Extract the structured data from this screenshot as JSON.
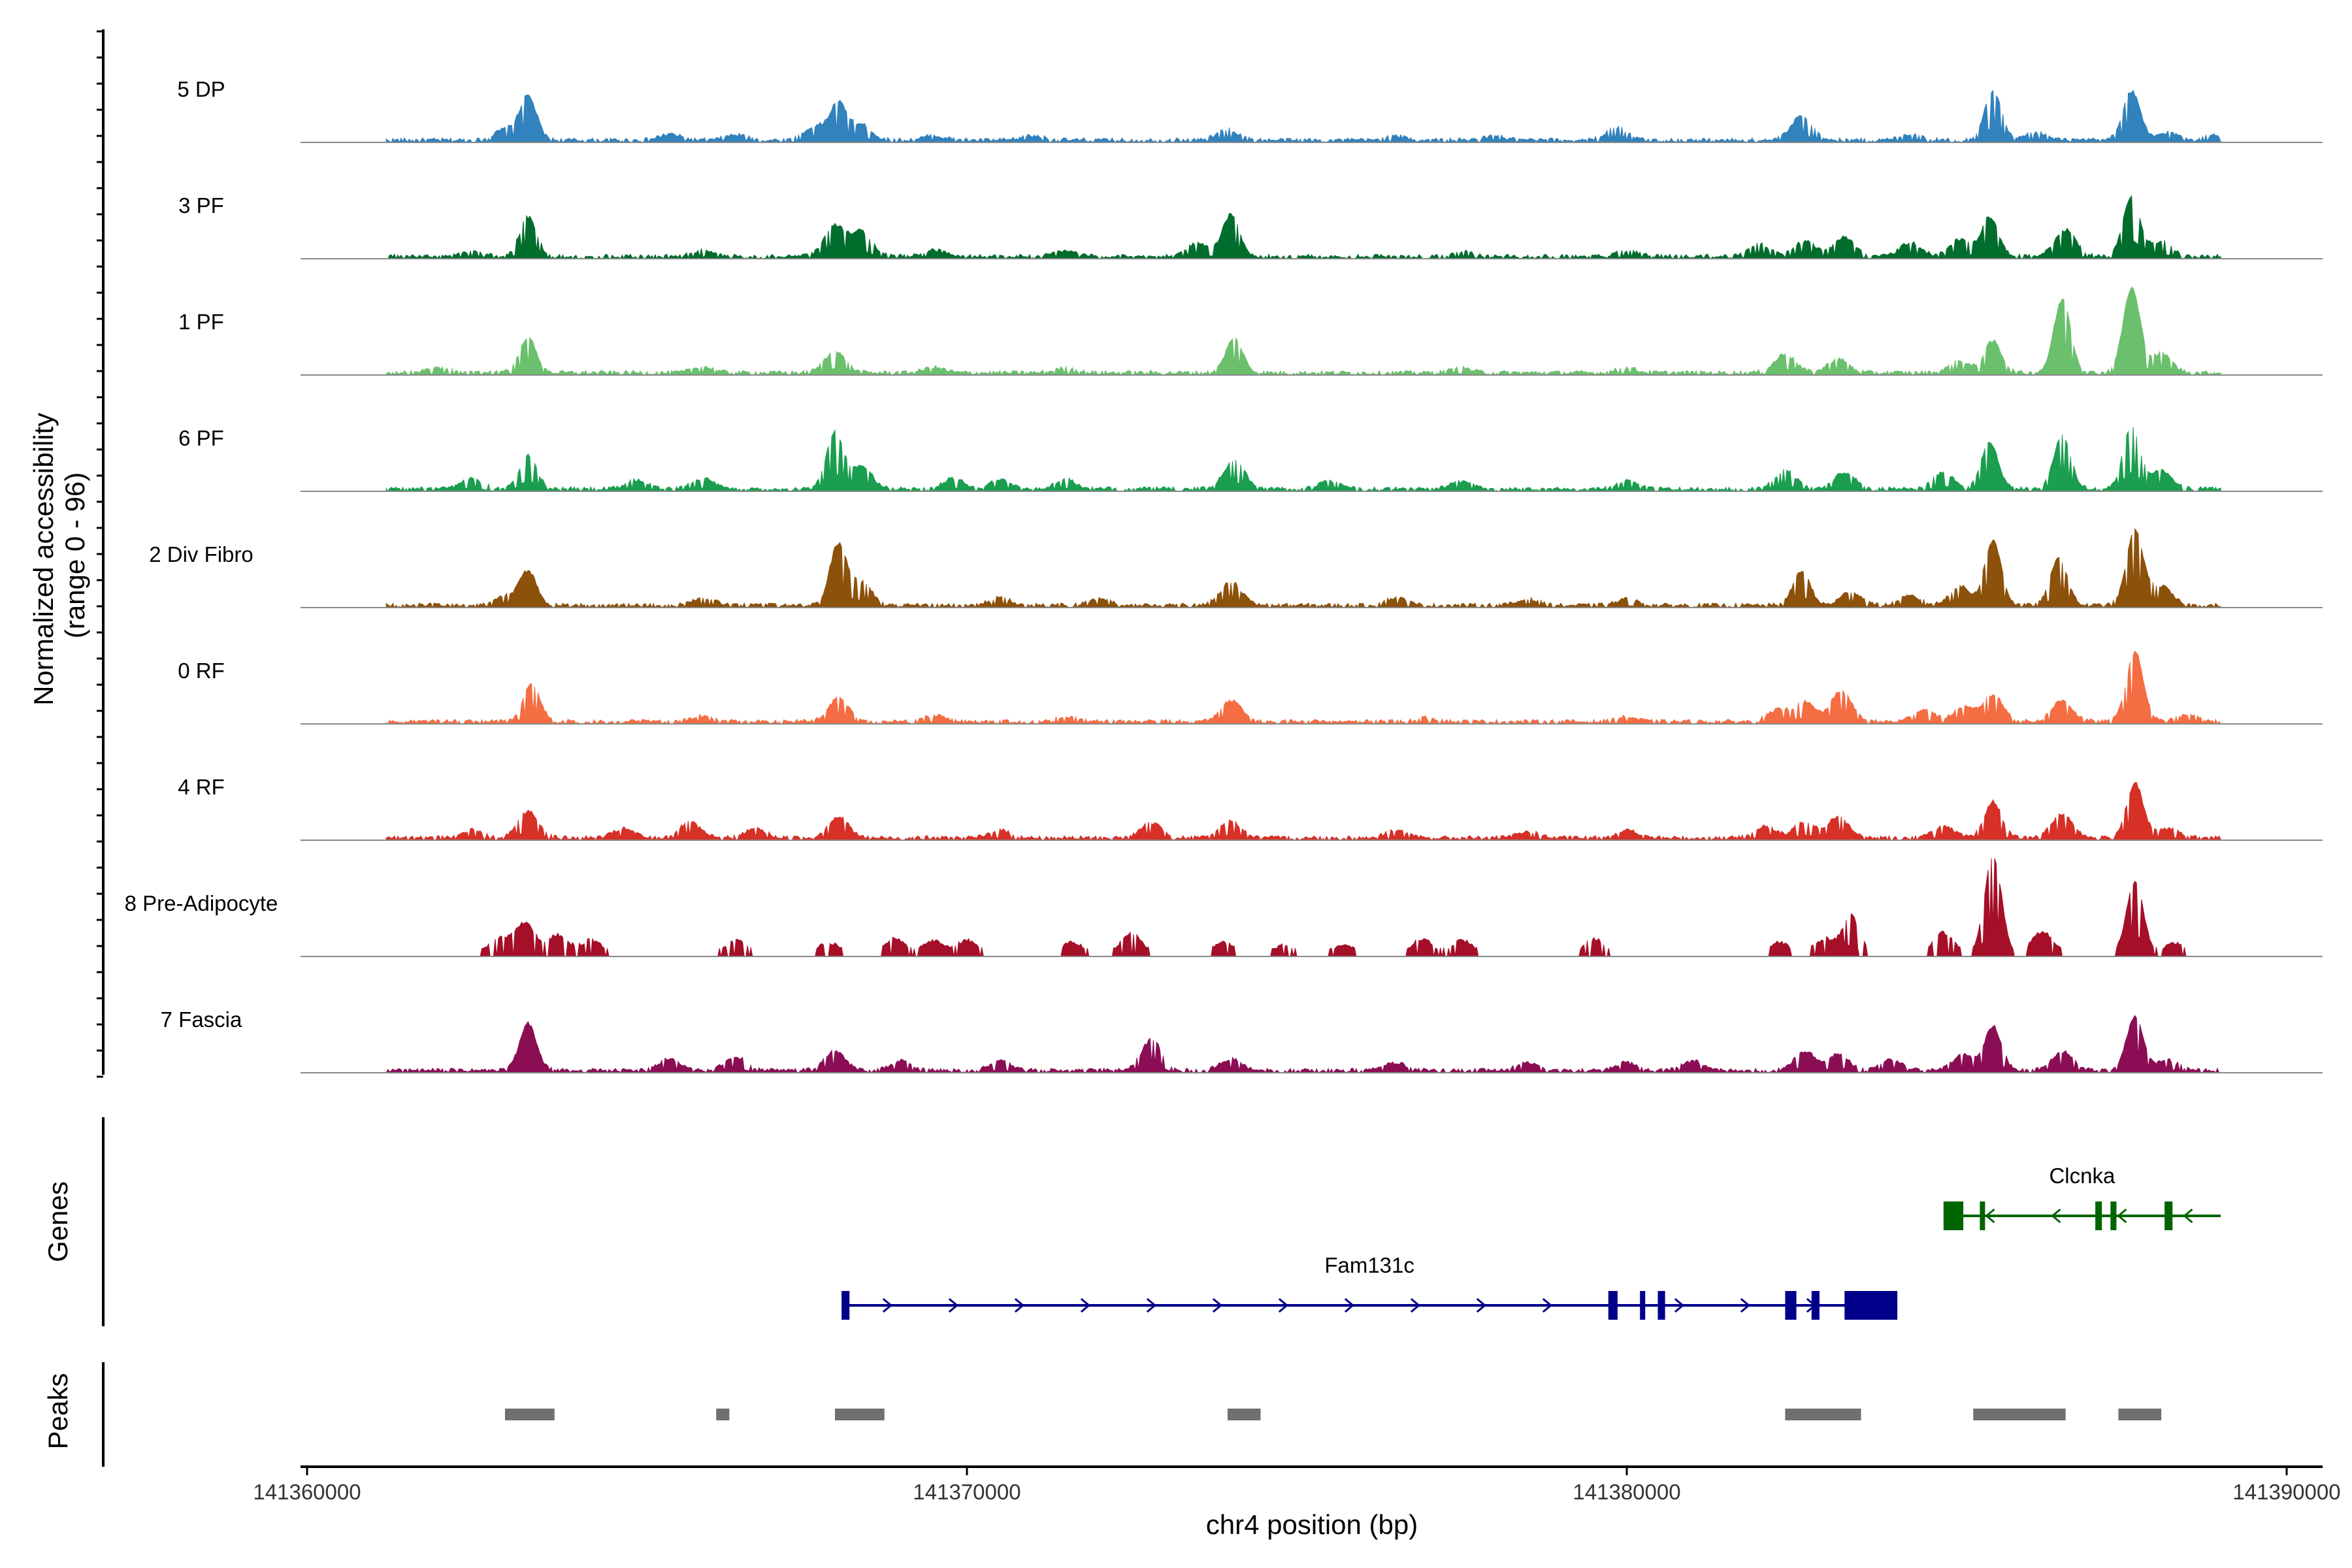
{
  "chart_data": {
    "type": "area",
    "title": "",
    "ylabel": "Normalized accessibility\n(range 0 - 96)",
    "ylabel_line1": "Normalized accessibility",
    "ylabel_line2": "(range 0 - 96)",
    "xlabel": "chr4 position (bp)",
    "y_range": [
      0,
      96
    ],
    "xlim": [
      141360000,
      141390000
    ],
    "x_ticks": [
      141360000,
      141370000,
      141380000,
      141390000
    ],
    "x_tick_labels": [
      "141360000",
      "141370000",
      "141380000",
      "141390000"
    ],
    "genes_label": "Genes",
    "peaks_label": "Peaks",
    "series": [
      {
        "name": "5 DP",
        "color": "#3182bd",
        "peaks": [
          [
            141363350,
            58
          ],
          [
            141363000,
            14
          ],
          [
            141368050,
            48
          ],
          [
            141367700,
            18
          ],
          [
            141368400,
            20
          ],
          [
            141373950,
            14
          ],
          [
            141379850,
            17
          ],
          [
            141382650,
            32
          ],
          [
            141385550,
            64
          ],
          [
            141387650,
            65
          ],
          [
            141386200,
            10
          ],
          [
            141388200,
            10
          ],
          [
            141365500,
            8
          ],
          [
            141366500,
            7
          ],
          [
            141369500,
            6
          ],
          [
            141371000,
            6
          ],
          [
            141376500,
            5
          ],
          [
            141378000,
            5
          ],
          [
            141384300,
            8
          ],
          [
            141388900,
            6
          ]
        ]
      },
      {
        "name": "3 PF",
        "color": "#006d2c",
        "peaks": [
          [
            141363350,
            52
          ],
          [
            141368000,
            40
          ],
          [
            141368400,
            32
          ],
          [
            141374000,
            55
          ],
          [
            141373500,
            18
          ],
          [
            141382700,
            20
          ],
          [
            141383300,
            25
          ],
          [
            141382000,
            16
          ],
          [
            141384300,
            18
          ],
          [
            141385500,
            52
          ],
          [
            141385050,
            22
          ],
          [
            141386650,
            35
          ],
          [
            141387650,
            80
          ],
          [
            141388100,
            20
          ],
          [
            141366000,
            8
          ],
          [
            141369500,
            8
          ],
          [
            141371500,
            8
          ],
          [
            141377500,
            6
          ],
          [
            141380000,
            8
          ],
          [
            141362500,
            6
          ]
        ]
      },
      {
        "name": "1 PF",
        "color": "#6bc06d",
        "peaks": [
          [
            141363350,
            45
          ],
          [
            141368000,
            28
          ],
          [
            141374050,
            45
          ],
          [
            141382400,
            25
          ],
          [
            141383200,
            18
          ],
          [
            141385550,
            42
          ],
          [
            141385050,
            15
          ],
          [
            141386600,
            97
          ],
          [
            141387650,
            112
          ],
          [
            141388100,
            25
          ],
          [
            141366000,
            8
          ],
          [
            141369500,
            7
          ],
          [
            141371500,
            6
          ],
          [
            141377500,
            6
          ],
          [
            141380000,
            6
          ],
          [
            141362000,
            6
          ]
        ]
      },
      {
        "name": "6 PF",
        "color": "#1b9e4f",
        "peaks": [
          [
            141363350,
            45
          ],
          [
            141368000,
            75
          ],
          [
            141368400,
            30
          ],
          [
            141374050,
            38
          ],
          [
            141382400,
            25
          ],
          [
            141383300,
            22
          ],
          [
            141385500,
            62
          ],
          [
            141384800,
            22
          ],
          [
            141386600,
            72
          ],
          [
            141387650,
            82
          ],
          [
            141388100,
            25
          ],
          [
            141362500,
            14
          ],
          [
            141366000,
            14
          ],
          [
            141369800,
            14
          ],
          [
            141371500,
            12
          ],
          [
            141375500,
            10
          ],
          [
            141377500,
            10
          ],
          [
            141380000,
            10
          ],
          [
            141365000,
            12
          ],
          [
            141370500,
            12
          ]
        ]
      },
      {
        "name": "2 Div Fibro",
        "color": "#8c510a",
        "peaks": [
          [
            141363350,
            45
          ],
          [
            141368050,
            80
          ],
          [
            141368400,
            30
          ],
          [
            141374000,
            32
          ],
          [
            141382650,
            45
          ],
          [
            141383400,
            18
          ],
          [
            141385550,
            85
          ],
          [
            141385050,
            25
          ],
          [
            141386550,
            62
          ],
          [
            141387700,
            98
          ],
          [
            141388100,
            25
          ],
          [
            141363000,
            12
          ],
          [
            141366000,
            10
          ],
          [
            141370500,
            10
          ],
          [
            141372000,
            8
          ],
          [
            141376500,
            10
          ],
          [
            141378500,
            8
          ],
          [
            141380000,
            8
          ],
          [
            141384300,
            12
          ]
        ]
      },
      {
        "name": "0 RF",
        "color": "#f46d43",
        "peaks": [
          [
            141363400,
            50
          ],
          [
            141368050,
            30
          ],
          [
            141374000,
            28
          ],
          [
            141382700,
            25
          ],
          [
            141383250,
            40
          ],
          [
            141382300,
            15
          ],
          [
            141384500,
            16
          ],
          [
            141385550,
            35
          ],
          [
            141385100,
            18
          ],
          [
            141386600,
            28
          ],
          [
            141387700,
            92
          ],
          [
            141366000,
            8
          ],
          [
            141369500,
            8
          ],
          [
            141371500,
            6
          ],
          [
            141377000,
            5
          ],
          [
            141380000,
            6
          ],
          [
            141388500,
            8
          ]
        ]
      },
      {
        "name": "4 RF",
        "color": "#d73027",
        "peaks": [
          [
            141363350,
            35
          ],
          [
            141365800,
            20
          ],
          [
            141368050,
            28
          ],
          [
            141372800,
            20
          ],
          [
            141374000,
            22
          ],
          [
            141382700,
            22
          ],
          [
            141383200,
            28
          ],
          [
            141382100,
            15
          ],
          [
            141384800,
            15
          ],
          [
            141385550,
            48
          ],
          [
            141386600,
            32
          ],
          [
            141387700,
            72
          ],
          [
            141362500,
            10
          ],
          [
            141364800,
            12
          ],
          [
            141366800,
            12
          ],
          [
            141370500,
            10
          ],
          [
            141376500,
            10
          ],
          [
            141378500,
            8
          ],
          [
            141380000,
            10
          ],
          [
            141388200,
            12
          ]
        ]
      },
      {
        "name": "8 Pre-Adipocyte",
        "color": "#a50f28",
        "peaks": [
          [
            141363300,
            40
          ],
          [
            141362900,
            20
          ],
          [
            141363800,
            25
          ],
          [
            141364300,
            18
          ],
          [
            141366500,
            18
          ],
          [
            141367900,
            15
          ],
          [
            141368900,
            20
          ],
          [
            141369500,
            18
          ],
          [
            141370000,
            18
          ],
          [
            141371600,
            15
          ],
          [
            141372500,
            28
          ],
          [
            141373900,
            15
          ],
          [
            141374800,
            12
          ],
          [
            141375700,
            12
          ],
          [
            141376900,
            20
          ],
          [
            141377500,
            18
          ],
          [
            141379500,
            20
          ],
          [
            141382300,
            15
          ],
          [
            141383400,
            50
          ],
          [
            141383000,
            20
          ],
          [
            141384800,
            28
          ],
          [
            141385550,
            130
          ],
          [
            141386300,
            30
          ],
          [
            141387700,
            95
          ],
          [
            141388300,
            15
          ]
        ]
      },
      {
        "name": "7 Fascia",
        "color": "#8b0e55",
        "peaks": [
          [
            141363350,
            62
          ],
          [
            141368000,
            25
          ],
          [
            141372800,
            40
          ],
          [
            141374000,
            15
          ],
          [
            141382700,
            25
          ],
          [
            141383200,
            22
          ],
          [
            141385550,
            58
          ],
          [
            141385100,
            20
          ],
          [
            141386600,
            25
          ],
          [
            141387700,
            70
          ],
          [
            141365500,
            15
          ],
          [
            141366500,
            18
          ],
          [
            141369000,
            12
          ],
          [
            141370500,
            12
          ],
          [
            141376500,
            10
          ],
          [
            141378500,
            10
          ],
          [
            141380000,
            10
          ],
          [
            141381000,
            12
          ],
          [
            141384000,
            14
          ],
          [
            141388200,
            14
          ]
        ]
      }
    ],
    "genes": [
      {
        "name": "Clcnka",
        "strand": "-",
        "color": "#006400",
        "start": 141384800,
        "end": 141389000,
        "exons": [
          [
            141384800,
            141385100
          ],
          [
            141385350,
            141385420
          ],
          [
            141387100,
            141387200
          ],
          [
            141387330,
            141387420
          ],
          [
            141388150,
            141388270
          ]
        ]
      },
      {
        "name": "Fam131c",
        "strand": "+",
        "color": "#00008b",
        "start": 141368100,
        "end": 141384100,
        "exons": [
          [
            141368100,
            141368220
          ],
          [
            141379720,
            141379860
          ],
          [
            141380200,
            141380230
          ],
          [
            141380470,
            141380580
          ],
          [
            141382400,
            141382570
          ],
          [
            141382800,
            141382920
          ],
          [
            141383300,
            141384100
          ]
        ]
      }
    ],
    "peaks_regions": [
      [
        141363000,
        141363750
      ],
      [
        141366200,
        141366400
      ],
      [
        141368000,
        141368750
      ],
      [
        141373950,
        141374450
      ],
      [
        141382400,
        141383550
      ],
      [
        141385250,
        141386650
      ],
      [
        141387450,
        141388100
      ]
    ]
  }
}
